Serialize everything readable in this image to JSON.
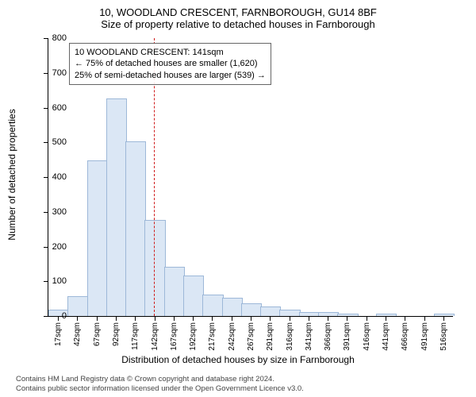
{
  "title_main": "10, WOODLAND CRESCENT, FARNBOROUGH, GU14 8BF",
  "title_sub": "Size of property relative to detached houses in Farnborough",
  "y_axis_title": "Number of detached properties",
  "x_axis_title": "Distribution of detached houses by size in Farnborough",
  "chart": {
    "type": "histogram",
    "ylim": [
      0,
      800
    ],
    "ytick_step": 100,
    "y_ticks": [
      0,
      100,
      200,
      300,
      400,
      500,
      600,
      700,
      800
    ],
    "x_labels": [
      "17sqm",
      "42sqm",
      "67sqm",
      "92sqm",
      "117sqm",
      "142sqm",
      "167sqm",
      "192sqm",
      "217sqm",
      "242sqm",
      "267sqm",
      "291sqm",
      "316sqm",
      "341sqm",
      "366sqm",
      "391sqm",
      "416sqm",
      "441sqm",
      "466sqm",
      "491sqm",
      "516sqm"
    ],
    "values": [
      15,
      55,
      445,
      625,
      500,
      275,
      140,
      115,
      60,
      50,
      35,
      25,
      15,
      10,
      10,
      5,
      0,
      5,
      0,
      0,
      5
    ],
    "bar_fill": "#dbe7f5",
    "bar_stroke": "#9db8d8",
    "bar_width_ratio": 1.0,
    "background": "#ffffff",
    "marker_value_sqm": 141,
    "marker_color": "#d01c1c",
    "label_fontsize": 11,
    "title_fontsize": 13
  },
  "info_box": {
    "line1": "10 WOODLAND CRESCENT: 141sqm",
    "line2": "← 75% of detached houses are smaller (1,620)",
    "line3": "25% of semi-detached houses are larger (539) →"
  },
  "footer": {
    "line1": "Contains HM Land Registry data © Crown copyright and database right 2024.",
    "line2": "Contains public sector information licensed under the Open Government Licence v3.0."
  }
}
